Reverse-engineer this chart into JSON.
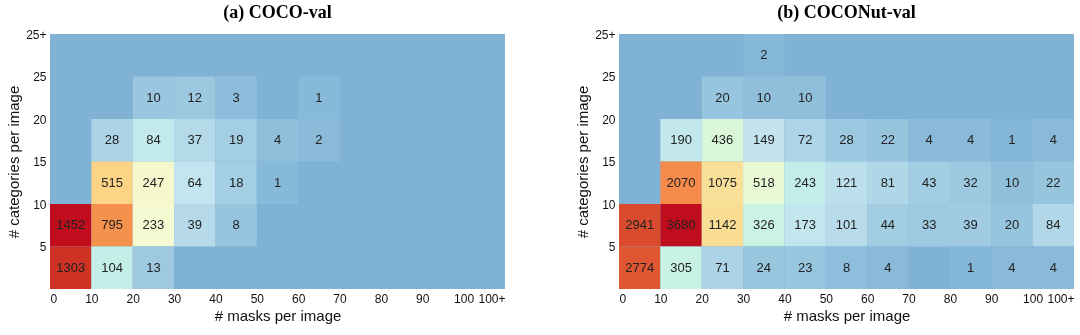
{
  "chart_data": [
    {
      "type": "heatmap",
      "title": "(a) COCO-val",
      "xlabel": "# masks per image",
      "ylabel": "# categories per image",
      "data_labels": true,
      "x": [
        5,
        15,
        25,
        35,
        45,
        55,
        65
      ],
      "y": [
        22.5,
        17.5,
        12.5,
        7.5,
        2.5
      ],
      "xlim": [
        0,
        110
      ],
      "xticks": [
        0,
        10,
        20,
        30,
        40,
        50,
        60,
        70,
        80,
        90,
        100,
        {
          "value": 110,
          "label": "100+"
        }
      ],
      "ylim": [
        0,
        30
      ],
      "yticks": [
        5,
        10,
        15,
        20,
        25,
        {
          "value": 30,
          "label": "25+"
        }
      ],
      "cells": [
        [
          null,
          null,
          10,
          12,
          3,
          null,
          1
        ],
        [
          null,
          28,
          84,
          37,
          19,
          4,
          2
        ],
        [
          null,
          515,
          247,
          64,
          18,
          1,
          null
        ],
        [
          1452,
          795,
          233,
          39,
          8,
          null,
          null
        ],
        [
          1303,
          104,
          13,
          null,
          null,
          null,
          null
        ]
      ]
    },
    {
      "type": "heatmap",
      "title": "(b) COCONut-val",
      "xlabel": "# masks per image",
      "ylabel": "# categories per image",
      "data_labels": true,
      "x": [
        5,
        15,
        25,
        35,
        45,
        55,
        65,
        75,
        85,
        95,
        105
      ],
      "y": [
        27.5,
        22.5,
        17.5,
        12.5,
        7.5,
        2.5
      ],
      "xlim": [
        0,
        110
      ],
      "xticks": [
        0,
        10,
        20,
        30,
        40,
        50,
        60,
        70,
        80,
        90,
        100,
        {
          "value": 110,
          "label": "100+"
        }
      ],
      "ylim": [
        0,
        30
      ],
      "yticks": [
        5,
        10,
        15,
        20,
        25,
        {
          "value": 30,
          "label": "25+"
        }
      ],
      "cells": [
        [
          null,
          null,
          null,
          2,
          null,
          null,
          null,
          null,
          null,
          null,
          null
        ],
        [
          null,
          null,
          20,
          10,
          10,
          null,
          null,
          null,
          null,
          null,
          null
        ],
        [
          null,
          190,
          436,
          149,
          72,
          28,
          22,
          4,
          4,
          1,
          4
        ],
        [
          null,
          2070,
          1075,
          518,
          243,
          121,
          81,
          43,
          32,
          10,
          22
        ],
        [
          2941,
          3680,
          1142,
          326,
          173,
          101,
          44,
          33,
          39,
          20,
          84
        ],
        [
          2774,
          305,
          71,
          24,
          23,
          8,
          4,
          null,
          1,
          4,
          4
        ]
      ]
    }
  ]
}
